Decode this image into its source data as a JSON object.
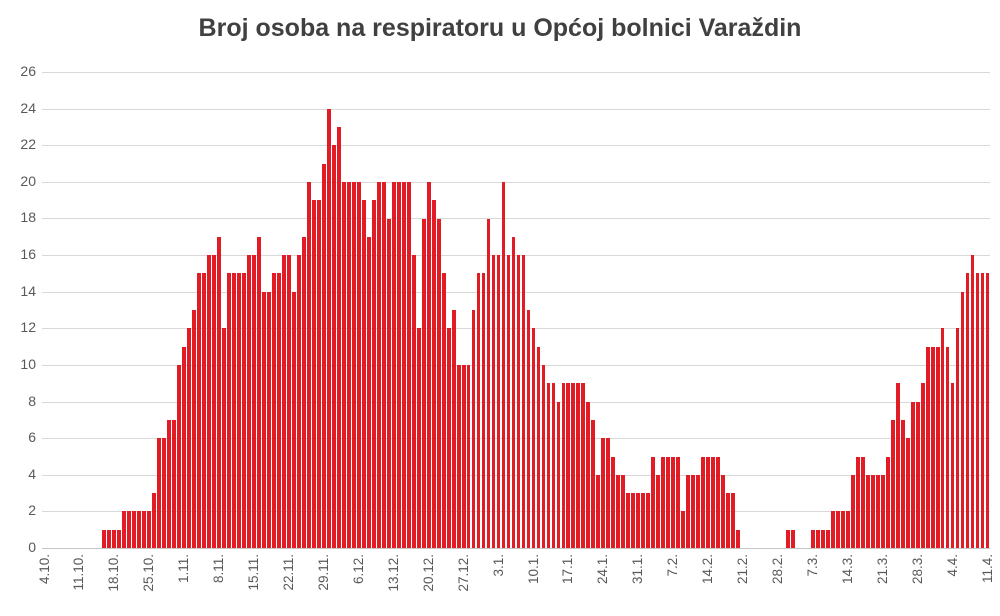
{
  "title": "Broj osoba na respiratoru u Općoj bolnici Varaždin",
  "colors": {
    "bar": "#e11c24",
    "grid": "#d9d9d9",
    "axis_line": "#c6c6c6",
    "axis_text": "#595959",
    "title_text": "#404040",
    "background": "#ffffff"
  },
  "chart_data": {
    "type": "bar",
    "title": "Broj osoba na respiratoru u Općoj bolnici Varaždin",
    "xlabel": "",
    "ylabel": "",
    "ylim": [
      0,
      26
    ],
    "y_tick_step": 2,
    "y_tick_labels": [
      "0",
      "2",
      "4",
      "6",
      "8",
      "10",
      "12",
      "14",
      "16",
      "18",
      "20",
      "22",
      "24",
      "26"
    ],
    "grid": "horizontal",
    "legend": "none",
    "x_is_daily_dates": true,
    "x_tick_every_days": 7,
    "x_tick_labels": [
      "4.10.",
      "11.10.",
      "18.10.",
      "25.10.",
      "1.11.",
      "8.11.",
      "15.11.",
      "22.11.",
      "29.11.",
      "6.12.",
      "13.12.",
      "20.12.",
      "27.12.",
      "3.1.",
      "10.1.",
      "17.1.",
      "24.1.",
      "31.1.",
      "7.2.",
      "14.2.",
      "21.2.",
      "28.2.",
      "7.3.",
      "14.3.",
      "21.3.",
      "28.3.",
      "4.4.",
      "11.4."
    ],
    "series_name": "Broj osoba na respiratoru",
    "values": [
      0,
      0,
      0,
      0,
      0,
      0,
      0,
      0,
      0,
      0,
      0,
      0,
      1,
      1,
      1,
      1,
      2,
      2,
      2,
      2,
      2,
      2,
      3,
      6,
      6,
      7,
      7,
      10,
      11,
      12,
      13,
      15,
      15,
      16,
      16,
      17,
      12,
      15,
      15,
      15,
      15,
      16,
      16,
      17,
      14,
      14,
      15,
      15,
      16,
      16,
      14,
      16,
      17,
      20,
      19,
      19,
      21,
      24,
      22,
      23,
      20,
      20,
      20,
      20,
      19,
      17,
      19,
      20,
      20,
      18,
      20,
      20,
      20,
      20,
      16,
      12,
      18,
      20,
      19,
      18,
      15,
      12,
      13,
      10,
      10,
      10,
      13,
      15,
      15,
      18,
      16,
      16,
      20,
      16,
      17,
      16,
      16,
      13,
      12,
      11,
      10,
      9,
      9,
      8,
      9,
      9,
      9,
      9,
      9,
      8,
      7,
      4,
      6,
      6,
      5,
      4,
      4,
      3,
      3,
      3,
      3,
      3,
      5,
      4,
      5,
      5,
      5,
      5,
      2,
      4,
      4,
      4,
      5,
      5,
      5,
      5,
      4,
      3,
      3,
      1,
      0,
      0,
      0,
      0,
      0,
      0,
      0,
      0,
      0,
      1,
      1,
      0,
      0,
      0,
      1,
      1,
      1,
      1,
      2,
      2,
      2,
      2,
      4,
      5,
      5,
      4,
      4,
      4,
      4,
      5,
      7,
      9,
      7,
      6,
      8,
      8,
      9,
      11,
      11,
      11,
      12,
      11,
      9,
      12,
      14,
      15,
      16,
      15,
      15,
      15
    ]
  }
}
